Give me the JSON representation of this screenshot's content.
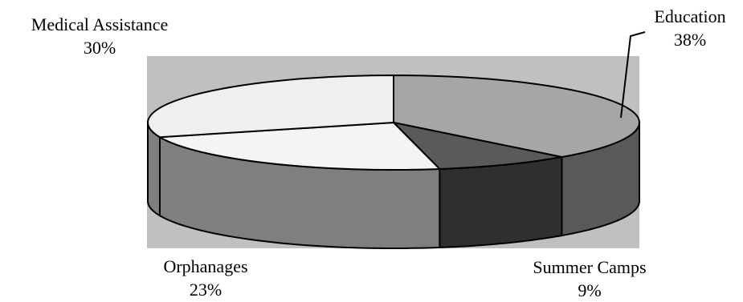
{
  "chart_data": {
    "type": "pie",
    "style": "3d",
    "categories": [
      "Education",
      "Summer Camps",
      "Orphanages",
      "Medical Assistance"
    ],
    "values": [
      38,
      9,
      23,
      30
    ],
    "value_labels": [
      "38%",
      "9%",
      "23%",
      "30%"
    ],
    "colors": {
      "Education": {
        "top": "#a6a6a6",
        "side": "#595959"
      },
      "Summer Camps": {
        "top": "#5a5a5a",
        "side": "#2f2f2f"
      },
      "Orphanages": {
        "top": "#f4f4f4",
        "side": "#7f7f7f"
      },
      "Medical Assistance": {
        "top": "#efefef",
        "side": "#7f7f7f"
      }
    },
    "background": "#c0c0c0"
  },
  "labels": {
    "education": {
      "name": "Education",
      "value": "38%"
    },
    "summer_camps": {
      "name": "Summer Camps",
      "value": "9%"
    },
    "orphanages": {
      "name": "Orphanages",
      "value": "23%"
    },
    "medical": {
      "name": "Medical Assistance",
      "value": "30%"
    }
  }
}
